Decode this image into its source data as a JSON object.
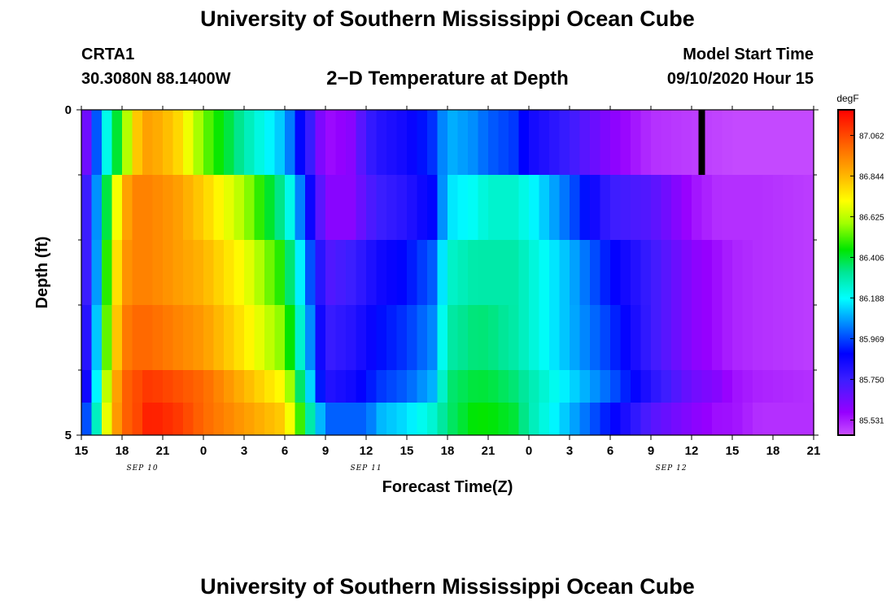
{
  "header": {
    "title": "University of Southern Mississippi Ocean Cube",
    "station": "CRTA1",
    "coordinates": "30.3080N 88.1400W",
    "plot_title": "2−D Temperature at Depth",
    "model_start_label": "Model Start Time",
    "model_start_value": "09/10/2020 Hour 15"
  },
  "footer": {
    "title": "University of Southern Mississippi Ocean Cube"
  },
  "chart_data": {
    "type": "heatmap",
    "title": "2−D Temperature at Depth",
    "xlabel": "Forecast Time(Z)",
    "ylabel": "Depth (ft)",
    "x_ticks": [
      {
        "label": "15",
        "hour": 0
      },
      {
        "label": "18",
        "hour": 3
      },
      {
        "label": "21",
        "hour": 6
      },
      {
        "label": "0",
        "hour": 9
      },
      {
        "label": "3",
        "hour": 12
      },
      {
        "label": "6",
        "hour": 15
      },
      {
        "label": "9",
        "hour": 18
      },
      {
        "label": "12",
        "hour": 21
      },
      {
        "label": "15",
        "hour": 24
      },
      {
        "label": "18",
        "hour": 27
      },
      {
        "label": "21",
        "hour": 30
      },
      {
        "label": "0",
        "hour": 33
      },
      {
        "label": "3",
        "hour": 36
      },
      {
        "label": "6",
        "hour": 39
      },
      {
        "label": "9",
        "hour": 42
      },
      {
        "label": "12",
        "hour": 45
      },
      {
        "label": "15",
        "hour": 48
      },
      {
        "label": "18",
        "hour": 51
      },
      {
        "label": "21",
        "hour": 54
      }
    ],
    "date_labels": [
      {
        "label": "SEP 10",
        "hour": 4.5
      },
      {
        "label": "SEP 11",
        "hour": 21
      },
      {
        "label": "SEP 12",
        "hour": 43.5
      }
    ],
    "x_range_hours": [
      0,
      54
    ],
    "y_ticks": [
      {
        "label": "0",
        "depth": 0
      },
      {
        "label": "5",
        "depth": 5
      }
    ],
    "y_minor_ticks": [
      1,
      2,
      3,
      4
    ],
    "ylim": [
      0,
      5
    ],
    "y_reversed": true,
    "depth_bins": 5,
    "colorbar": {
      "unit": "degF",
      "min": 85.45,
      "max": 87.2,
      "ticks": [
        "87.062",
        "86.844",
        "86.625",
        "86.406",
        "86.188",
        "85.969",
        "85.750",
        "85.531"
      ]
    },
    "missing_data": {
      "hour": 45.75,
      "depth_bin": 0
    },
    "anchor_hours": [
      0,
      1,
      2,
      3,
      4,
      5,
      7,
      9,
      12,
      15,
      18,
      20,
      21,
      22,
      24,
      26,
      27,
      29,
      30,
      32,
      33,
      36,
      39,
      42,
      45,
      47,
      48,
      50,
      54
    ],
    "depth_profiles": [
      {
        "depth_range": [
          0,
          1
        ],
        "values": [
          85.47,
          85.95,
          86.25,
          86.5,
          86.8,
          86.9,
          86.8,
          86.55,
          86.3,
          86.1,
          85.55,
          85.6,
          85.75,
          85.8,
          85.85,
          85.95,
          86.1,
          86.05,
          86.0,
          85.95,
          85.85,
          85.75,
          85.6,
          85.5,
          85.48,
          85.47,
          85.46,
          85.46,
          85.46
        ]
      },
      {
        "depth_range": [
          1,
          2
        ],
        "values": [
          85.6,
          86.0,
          86.45,
          86.85,
          86.95,
          86.95,
          86.9,
          86.8,
          86.6,
          86.3,
          85.6,
          85.6,
          85.7,
          85.75,
          85.8,
          85.9,
          86.15,
          86.2,
          86.25,
          86.25,
          86.2,
          86.0,
          85.75,
          85.7,
          85.55,
          85.5,
          85.5,
          85.5,
          85.48
        ]
      },
      {
        "depth_range": [
          2,
          3
        ],
        "values": [
          85.6,
          86.0,
          86.55,
          86.9,
          86.95,
          86.95,
          86.9,
          86.85,
          86.7,
          86.45,
          85.7,
          85.75,
          85.8,
          85.85,
          85.9,
          86.0,
          86.25,
          86.3,
          86.3,
          86.3,
          86.25,
          86.1,
          85.9,
          85.75,
          85.6,
          85.55,
          85.52,
          85.5,
          85.48
        ]
      },
      {
        "depth_range": [
          3,
          4
        ],
        "values": [
          85.65,
          86.05,
          86.6,
          86.95,
          87.0,
          87.0,
          86.95,
          86.9,
          86.75,
          86.55,
          85.75,
          85.8,
          85.85,
          85.9,
          85.95,
          86.05,
          86.3,
          86.35,
          86.35,
          86.3,
          86.25,
          86.1,
          85.95,
          85.75,
          85.6,
          85.55,
          85.52,
          85.5,
          85.48
        ]
      },
      {
        "depth_range": [
          4,
          5
        ],
        "values": [
          85.7,
          86.1,
          86.7,
          87.0,
          87.05,
          87.1,
          87.05,
          87.0,
          86.85,
          86.7,
          85.8,
          85.85,
          85.9,
          85.95,
          86.0,
          86.1,
          86.35,
          86.4,
          86.4,
          86.35,
          86.3,
          86.15,
          86.0,
          85.8,
          85.65,
          85.6,
          85.55,
          85.52,
          85.5
        ]
      },
      {
        "depth_range": [
          4.5,
          5
        ],
        "values": [
          85.85,
          86.2,
          86.75,
          87.0,
          87.05,
          87.15,
          87.1,
          87.0,
          86.9,
          86.8,
          86.0,
          86.0,
          86.0,
          86.1,
          86.15,
          86.25,
          86.35,
          86.45,
          86.45,
          86.4,
          86.3,
          86.1,
          85.9,
          85.7,
          85.6,
          85.55,
          85.55,
          85.5,
          85.5
        ]
      }
    ]
  }
}
